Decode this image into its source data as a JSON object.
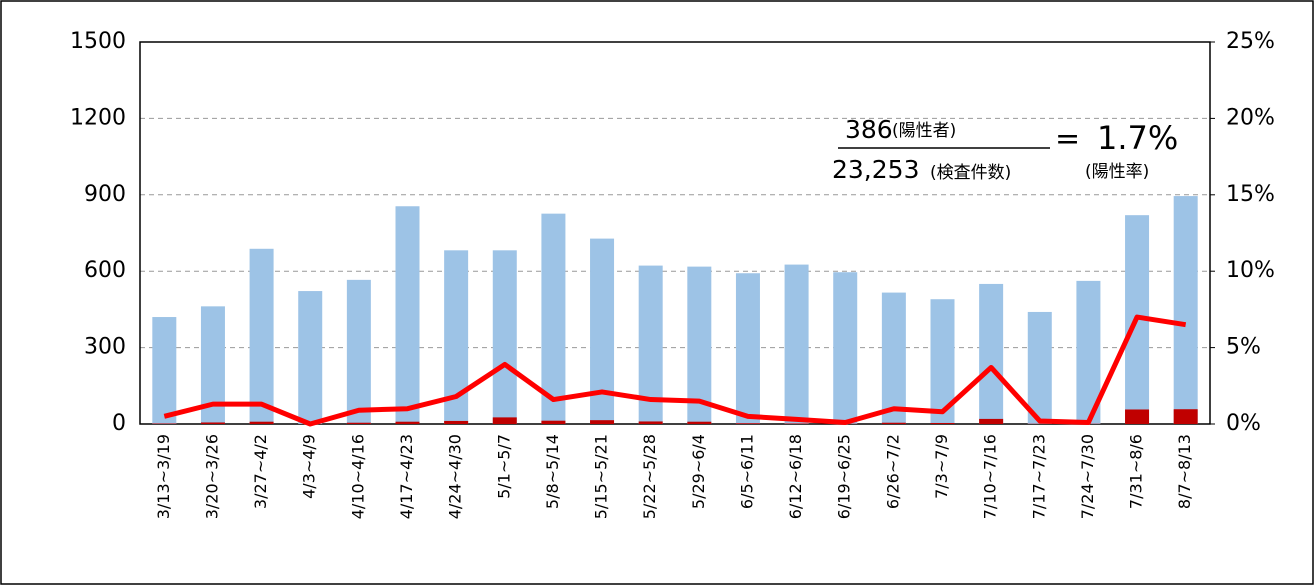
{
  "chart_data": {
    "type": "bar-line",
    "categories": [
      "3/13~3/19",
      "3/20~3/26",
      "3/27~4/2",
      "4/3~4/9",
      "4/10~4/16",
      "4/17~4/23",
      "4/24~4/30",
      "5/1~5/7",
      "5/8~5/14",
      "5/15~5/21",
      "5/22~5/28",
      "5/29~6/4",
      "6/5~6/11",
      "6/12~6/18",
      "6/19~6/25",
      "6/26~7/2",
      "7/3~7/9",
      "7/10~7/16",
      "7/17~7/23",
      "7/24~7/30",
      "7/31~8/6",
      "8/7~8/13"
    ],
    "series": [
      {
        "type": "bar",
        "color": "#9dc3e6",
        "values": [
          420,
          462,
          688,
          522,
          566,
          855,
          682,
          682,
          826,
          728,
          622,
          618,
          592,
          626,
          596,
          516,
          490,
          550,
          440,
          562,
          820,
          895
        ]
      },
      {
        "type": "bar",
        "color": "#c00000",
        "values": [
          2,
          6,
          9,
          0,
          5,
          9,
          12,
          26,
          13,
          15,
          10,
          9,
          3,
          2,
          1,
          5,
          4,
          20,
          1,
          1,
          57,
          58
        ]
      },
      {
        "type": "line",
        "axis": "y2",
        "color": "#ff0000",
        "values": [
          0.5,
          1.3,
          1.3,
          0,
          0.9,
          1.0,
          1.8,
          3.9,
          1.6,
          2.1,
          1.6,
          1.5,
          0.5,
          0.3,
          0.1,
          1.0,
          0.8,
          3.7,
          0.2,
          0.1,
          7.0,
          6.5
        ]
      }
    ],
    "ylim": [
      0,
      1500
    ],
    "yticks": [
      0,
      300,
      600,
      900,
      1200,
      1500
    ],
    "y2lim": [
      0,
      25
    ],
    "y2ticks": [
      {
        "value": 0,
        "label": "0%"
      },
      {
        "value": 5,
        "label": "5%"
      },
      {
        "value": 10,
        "label": "10%"
      },
      {
        "value": 15,
        "label": "15%"
      },
      {
        "value": 20,
        "label": "20%"
      },
      {
        "value": 25,
        "label": "25%"
      }
    ],
    "grid": true,
    "annotation": {
      "positives": "386",
      "positives_label": "(陽性者)",
      "tests": "23,253",
      "tests_label": "(検査件数)",
      "equals": "=",
      "rate": "1.7%",
      "rate_label": "(陽性率)"
    }
  }
}
